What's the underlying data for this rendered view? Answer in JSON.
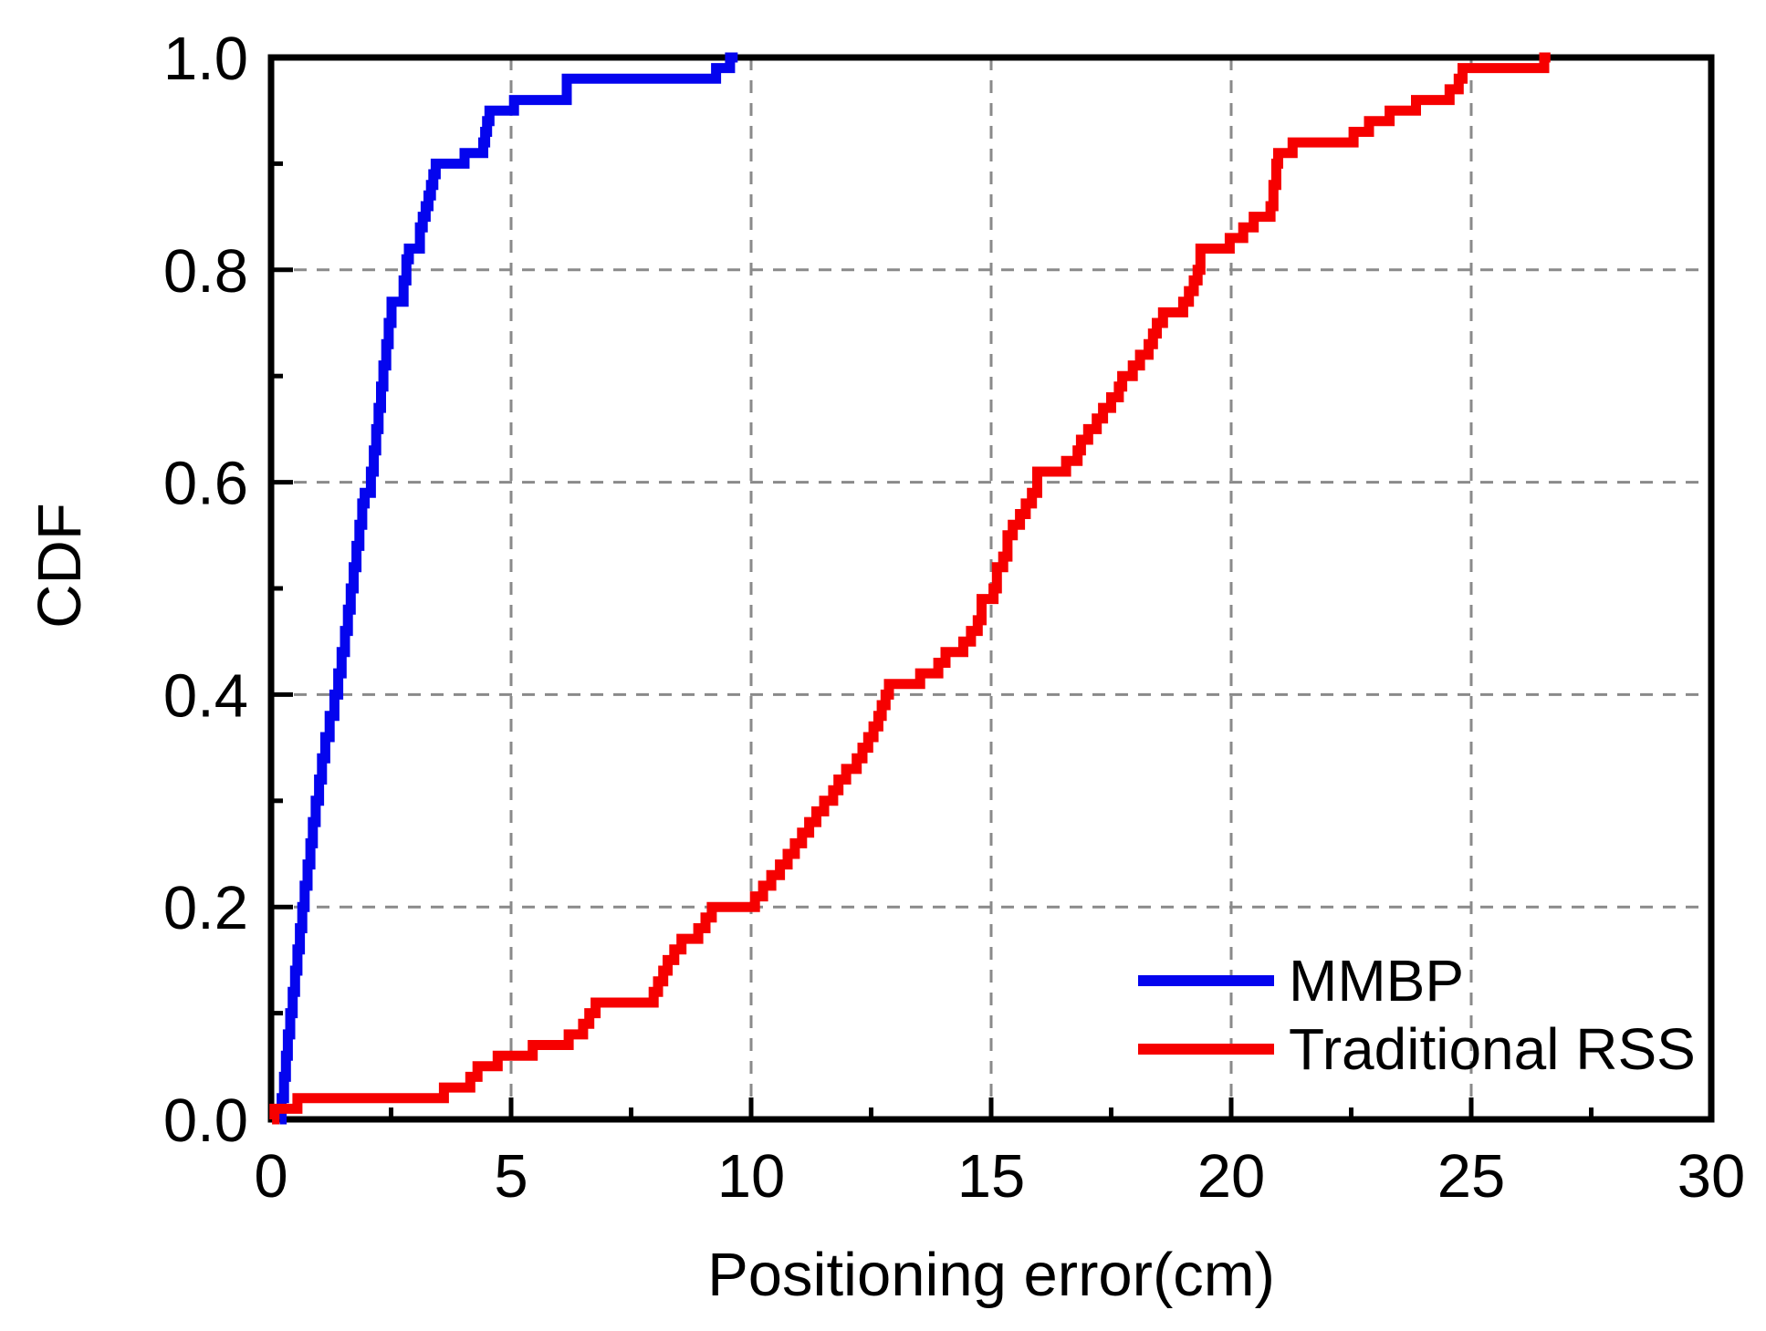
{
  "figure": {
    "background": "#ffffff",
    "text_color": "#000000"
  },
  "chart_data": {
    "type": "line",
    "subtype": "step-cdf",
    "title": "",
    "xlabel": "Positioning error(cm)",
    "ylabel": "CDF",
    "xlim": [
      0,
      30
    ],
    "ylim": [
      0.0,
      1.0
    ],
    "xticks": {
      "major": [
        0,
        5,
        10,
        15,
        20,
        25,
        30
      ],
      "minor": [
        2.5,
        7.5,
        12.5,
        17.5,
        22.5,
        27.5
      ],
      "labels": [
        "0",
        "5",
        "10",
        "15",
        "20",
        "25",
        "30"
      ]
    },
    "yticks": {
      "major": [
        0.0,
        0.2,
        0.4,
        0.6,
        0.8,
        1.0
      ],
      "minor": [
        0.1,
        0.3,
        0.5,
        0.7,
        0.9
      ],
      "labels": [
        "0.0",
        "0.2",
        "0.4",
        "0.6",
        "0.8",
        "1.0"
      ]
    },
    "grid": {
      "show": true,
      "style": "dashed",
      "color": "#8a8a8a",
      "x_lines": [
        5,
        10,
        15,
        20,
        25
      ],
      "y_lines": [
        0.2,
        0.4,
        0.6,
        0.8
      ]
    },
    "axis_color": "#000000",
    "legend": {
      "position": "bottom-right",
      "frame": false,
      "entries": [
        "MMBP",
        "Traditional RSS"
      ]
    },
    "series": [
      {
        "name": "MMBP",
        "color": "#0404ee",
        "line_width": 11,
        "step": true,
        "points": [
          [
            0.18,
            0
          ],
          [
            0.22,
            0.02
          ],
          [
            0.27,
            0.04
          ],
          [
            0.31,
            0.06
          ],
          [
            0.35,
            0.08
          ],
          [
            0.4,
            0.1
          ],
          [
            0.45,
            0.12
          ],
          [
            0.5,
            0.14
          ],
          [
            0.55,
            0.16
          ],
          [
            0.6,
            0.18
          ],
          [
            0.65,
            0.2
          ],
          [
            0.7,
            0.22
          ],
          [
            0.76,
            0.24
          ],
          [
            0.82,
            0.26
          ],
          [
            0.87,
            0.28
          ],
          [
            0.93,
            0.3
          ],
          [
            1.0,
            0.32
          ],
          [
            1.06,
            0.34
          ],
          [
            1.13,
            0.36
          ],
          [
            1.22,
            0.38
          ],
          [
            1.32,
            0.4
          ],
          [
            1.4,
            0.42
          ],
          [
            1.47,
            0.44
          ],
          [
            1.54,
            0.46
          ],
          [
            1.6,
            0.48
          ],
          [
            1.66,
            0.5
          ],
          [
            1.72,
            0.52
          ],
          [
            1.78,
            0.54
          ],
          [
            1.84,
            0.56
          ],
          [
            1.9,
            0.58
          ],
          [
            1.95,
            0.59
          ],
          [
            2.08,
            0.61
          ],
          [
            2.14,
            0.63
          ],
          [
            2.19,
            0.65
          ],
          [
            2.24,
            0.67
          ],
          [
            2.29,
            0.69
          ],
          [
            2.34,
            0.71
          ],
          [
            2.4,
            0.73
          ],
          [
            2.45,
            0.75
          ],
          [
            2.51,
            0.77
          ],
          [
            2.76,
            0.79
          ],
          [
            2.82,
            0.81
          ],
          [
            2.87,
            0.82
          ],
          [
            3.1,
            0.84
          ],
          [
            3.16,
            0.85
          ],
          [
            3.22,
            0.86
          ],
          [
            3.28,
            0.87
          ],
          [
            3.33,
            0.88
          ],
          [
            3.38,
            0.89
          ],
          [
            3.43,
            0.9
          ],
          [
            4.03,
            0.91
          ],
          [
            4.42,
            0.92
          ],
          [
            4.46,
            0.93
          ],
          [
            4.5,
            0.94
          ],
          [
            4.55,
            0.95
          ],
          [
            5.06,
            0.96
          ],
          [
            6.16,
            0.98
          ],
          [
            9.27,
            0.99
          ],
          [
            9.56,
            1.0
          ],
          [
            9.72,
            1.0
          ]
        ]
      },
      {
        "name": "Traditional RSS",
        "color": "#f60000",
        "line_width": 11,
        "step": true,
        "points": [
          [
            0.02,
            0
          ],
          [
            0.07,
            0.01
          ],
          [
            0.55,
            0.02
          ],
          [
            3.6,
            0.03
          ],
          [
            4.15,
            0.04
          ],
          [
            4.3,
            0.05
          ],
          [
            4.72,
            0.06
          ],
          [
            5.45,
            0.07
          ],
          [
            6.2,
            0.08
          ],
          [
            6.5,
            0.09
          ],
          [
            6.63,
            0.1
          ],
          [
            6.76,
            0.11
          ],
          [
            7.97,
            0.12
          ],
          [
            8.06,
            0.13
          ],
          [
            8.17,
            0.14
          ],
          [
            8.26,
            0.15
          ],
          [
            8.4,
            0.16
          ],
          [
            8.55,
            0.17
          ],
          [
            8.9,
            0.18
          ],
          [
            9.05,
            0.19
          ],
          [
            9.18,
            0.2
          ],
          [
            10.08,
            0.21
          ],
          [
            10.25,
            0.22
          ],
          [
            10.42,
            0.23
          ],
          [
            10.6,
            0.24
          ],
          [
            10.76,
            0.25
          ],
          [
            10.91,
            0.26
          ],
          [
            11.06,
            0.27
          ],
          [
            11.21,
            0.28
          ],
          [
            11.36,
            0.29
          ],
          [
            11.52,
            0.3
          ],
          [
            11.71,
            0.31
          ],
          [
            11.82,
            0.32
          ],
          [
            11.98,
            0.33
          ],
          [
            12.2,
            0.34
          ],
          [
            12.32,
            0.35
          ],
          [
            12.44,
            0.36
          ],
          [
            12.55,
            0.37
          ],
          [
            12.65,
            0.38
          ],
          [
            12.72,
            0.39
          ],
          [
            12.8,
            0.4
          ],
          [
            12.87,
            0.41
          ],
          [
            13.52,
            0.42
          ],
          [
            13.9,
            0.43
          ],
          [
            14.05,
            0.44
          ],
          [
            14.42,
            0.45
          ],
          [
            14.58,
            0.46
          ],
          [
            14.72,
            0.47
          ],
          [
            14.8,
            0.49
          ],
          [
            15.05,
            0.5
          ],
          [
            15.12,
            0.52
          ],
          [
            15.25,
            0.53
          ],
          [
            15.34,
            0.55
          ],
          [
            15.45,
            0.56
          ],
          [
            15.6,
            0.57
          ],
          [
            15.72,
            0.58
          ],
          [
            15.85,
            0.59
          ],
          [
            15.96,
            0.61
          ],
          [
            16.56,
            0.62
          ],
          [
            16.8,
            0.63
          ],
          [
            16.87,
            0.64
          ],
          [
            17.02,
            0.65
          ],
          [
            17.2,
            0.66
          ],
          [
            17.33,
            0.67
          ],
          [
            17.5,
            0.68
          ],
          [
            17.66,
            0.69
          ],
          [
            17.73,
            0.7
          ],
          [
            17.95,
            0.71
          ],
          [
            18.1,
            0.72
          ],
          [
            18.28,
            0.73
          ],
          [
            18.37,
            0.74
          ],
          [
            18.45,
            0.75
          ],
          [
            18.58,
            0.76
          ],
          [
            19.0,
            0.77
          ],
          [
            19.12,
            0.78
          ],
          [
            19.22,
            0.79
          ],
          [
            19.3,
            0.8
          ],
          [
            19.36,
            0.82
          ],
          [
            19.97,
            0.83
          ],
          [
            20.25,
            0.84
          ],
          [
            20.47,
            0.85
          ],
          [
            20.82,
            0.86
          ],
          [
            20.88,
            0.88
          ],
          [
            20.94,
            0.9
          ],
          [
            20.98,
            0.91
          ],
          [
            21.28,
            0.92
          ],
          [
            22.55,
            0.93
          ],
          [
            22.87,
            0.94
          ],
          [
            23.3,
            0.95
          ],
          [
            23.85,
            0.96
          ],
          [
            24.55,
            0.97
          ],
          [
            24.74,
            0.98
          ],
          [
            24.82,
            0.99
          ],
          [
            26.52,
            1.0
          ],
          [
            26.65,
            1.0
          ]
        ]
      }
    ]
  }
}
